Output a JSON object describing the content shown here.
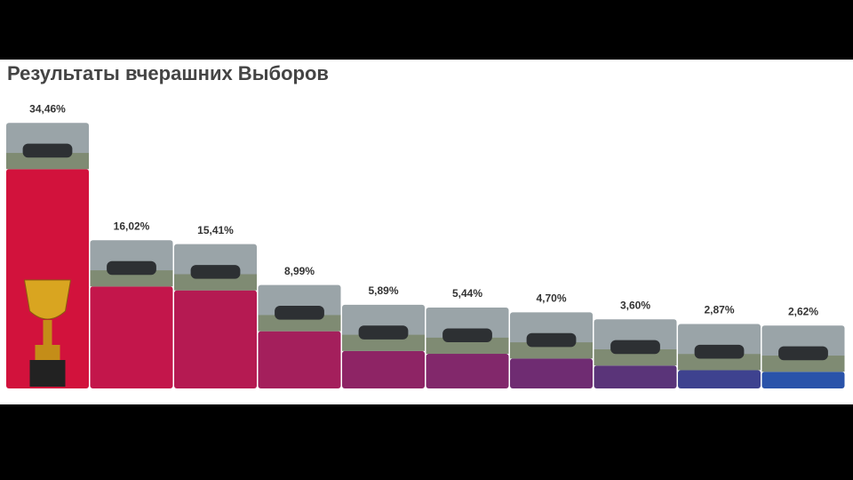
{
  "chart_data": {
    "type": "bar",
    "title": "Результаты вчерашних Выборов",
    "categories": [
      null,
      null,
      null,
      null,
      null,
      null,
      null,
      null,
      null,
      null
    ],
    "values": [
      34.46,
      16.02,
      15.41,
      8.99,
      5.89,
      5.44,
      4.7,
      3.6,
      2.87,
      2.62
    ],
    "value_labels": [
      "34,46%",
      "16,02%",
      "15,41%",
      "8,99%",
      "5,89%",
      "5,44%",
      "4,70%",
      "3,60%",
      "2,87%",
      "2,62%"
    ],
    "colors": [
      "#d2123c",
      "#c3164b",
      "#b51a52",
      "#a41f5c",
      "#8e2465",
      "#82286b",
      "#6f2c72",
      "#5a3479",
      "#3e428f",
      "#2a53aa"
    ]
  }
}
